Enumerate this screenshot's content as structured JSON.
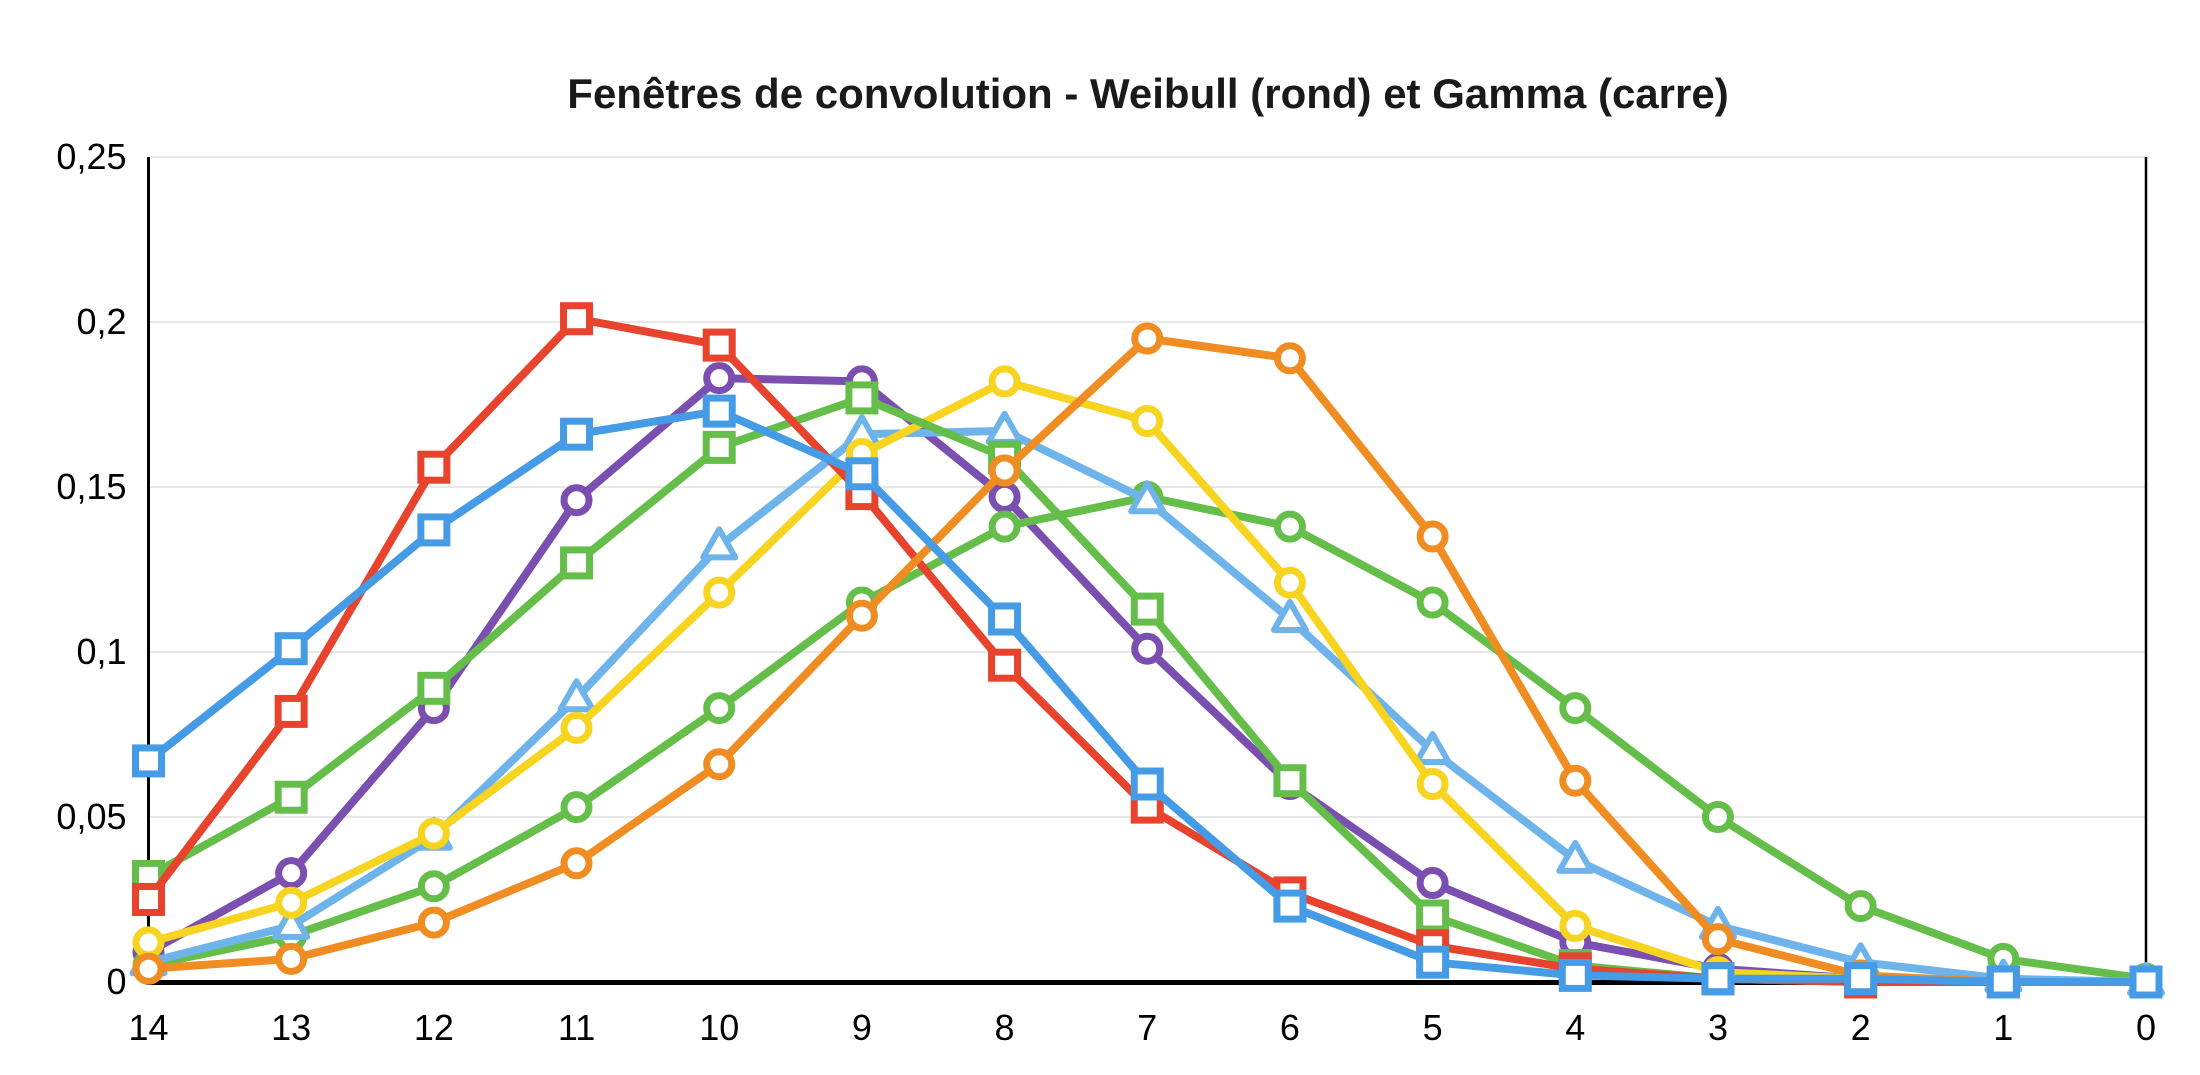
{
  "chart_data": {
    "type": "line",
    "title": "Fenêtres de convolution - Weibull (rond) et Gamma (carre)",
    "xlabel": "",
    "ylabel": "",
    "x_axis_reversed": true,
    "categories": [
      14,
      13,
      12,
      11,
      10,
      9,
      8,
      7,
      6,
      5,
      4,
      3,
      2,
      1,
      0
    ],
    "x_tick_labels": [
      "14",
      "13",
      "12",
      "11",
      "10",
      "9",
      "8",
      "7",
      "6",
      "5",
      "4",
      "3",
      "2",
      "1",
      "0"
    ],
    "ylim": [
      0,
      0.25
    ],
    "y_tick_values": [
      0,
      0.05,
      0.1,
      0.15,
      0.2,
      0.25
    ],
    "y_tick_labels": [
      "0",
      "0,05",
      "0,1",
      "0,15",
      "0,2",
      "0,25"
    ],
    "grid": "horizontal",
    "grid_color": "#e7e7e7",
    "axis_color": "#000000",
    "legend_position": "none",
    "marker_fill": "#ffffff",
    "series": [
      {
        "name": "weibull-purple",
        "family": "Weibull",
        "marker": "circle",
        "color": "#7A4FB0",
        "values": [
          0.009,
          0.033,
          0.083,
          0.146,
          0.183,
          0.182,
          0.147,
          0.101,
          0.06,
          0.03,
          0.012,
          0.004,
          0.001,
          0.0,
          0.0
        ]
      },
      {
        "name": "weibull-green",
        "family": "Weibull",
        "marker": "circle",
        "color": "#65BE4A",
        "values": [
          0.005,
          0.014,
          0.029,
          0.053,
          0.083,
          0.115,
          0.138,
          0.147,
          0.138,
          0.115,
          0.083,
          0.05,
          0.023,
          0.007,
          0.001
        ]
      },
      {
        "name": "triangle-skyblue",
        "family": "Weibull",
        "marker": "triangle",
        "color": "#6FB3EB",
        "values": [
          0.006,
          0.017,
          0.044,
          0.086,
          0.132,
          0.166,
          0.167,
          0.146,
          0.11,
          0.07,
          0.037,
          0.017,
          0.006,
          0.001,
          0.0
        ]
      },
      {
        "name": "weibull-yellow",
        "family": "Weibull",
        "marker": "circle",
        "color": "#F7D41F",
        "values": [
          0.012,
          0.024,
          0.045,
          0.077,
          0.118,
          0.16,
          0.182,
          0.17,
          0.121,
          0.06,
          0.017,
          0.003,
          0.001,
          0.0,
          0.0
        ]
      },
      {
        "name": "gamma-green",
        "family": "Gamma",
        "marker": "square",
        "color": "#65BE4A",
        "values": [
          0.032,
          0.056,
          0.089,
          0.127,
          0.162,
          0.177,
          0.159,
          0.113,
          0.061,
          0.02,
          0.005,
          0.001,
          0.0,
          0.0,
          0.0
        ]
      },
      {
        "name": "gamma-red",
        "family": "Gamma",
        "marker": "square",
        "color": "#E8432D",
        "values": [
          0.025,
          0.082,
          0.156,
          0.201,
          0.193,
          0.148,
          0.096,
          0.053,
          0.027,
          0.011,
          0.004,
          0.001,
          0.0,
          0.0,
          0.0
        ]
      },
      {
        "name": "weibull-orange",
        "family": "Weibull",
        "marker": "circle",
        "color": "#EF8D22",
        "values": [
          0.004,
          0.007,
          0.018,
          0.036,
          0.066,
          0.111,
          0.155,
          0.195,
          0.189,
          0.135,
          0.061,
          0.013,
          0.002,
          0.0,
          0.0
        ]
      },
      {
        "name": "gamma-blue",
        "family": "Gamma",
        "marker": "square",
        "color": "#459BE5",
        "values": [
          0.067,
          0.101,
          0.137,
          0.166,
          0.173,
          0.154,
          0.11,
          0.06,
          0.023,
          0.006,
          0.002,
          0.001,
          0.001,
          0.0,
          0.0
        ]
      }
    ]
  }
}
